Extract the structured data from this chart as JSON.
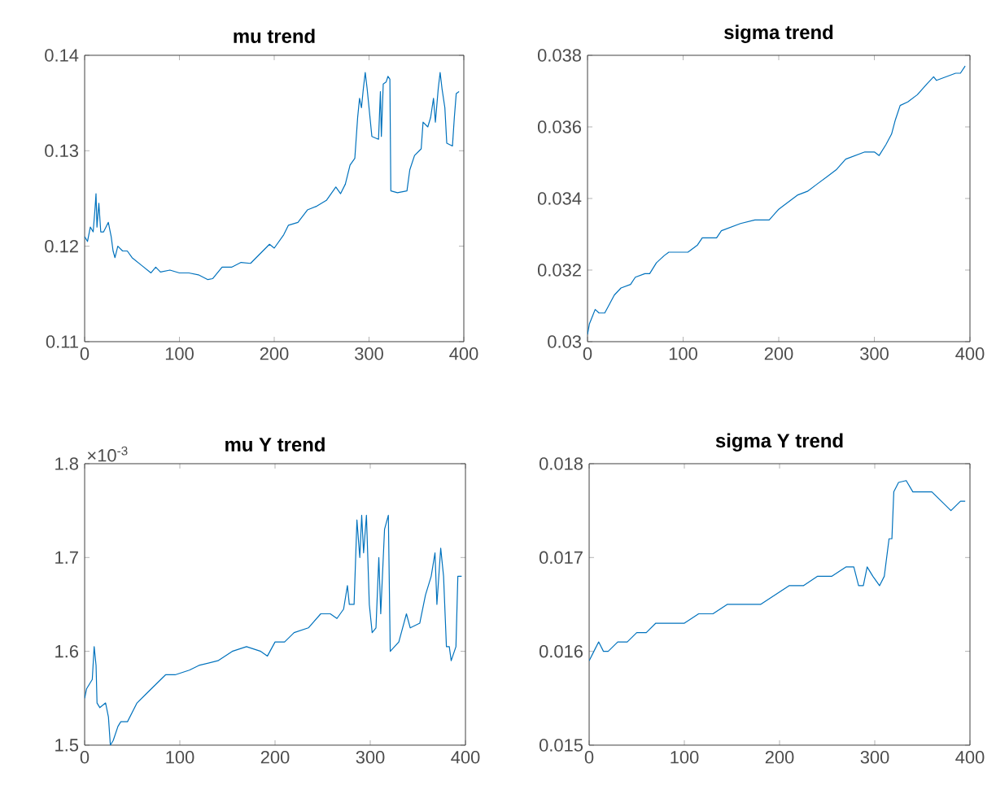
{
  "chart_data": [
    {
      "type": "line",
      "title": "mu trend",
      "color": "#0072bd",
      "xlim": [
        0,
        400
      ],
      "xticks": [
        0,
        100,
        200,
        300,
        400
      ],
      "ylim": [
        0.11,
        0.14
      ],
      "yticks": [
        0.11,
        0.12,
        0.13,
        0.14
      ],
      "grid": false,
      "x": [
        0,
        3,
        6,
        9,
        11,
        12,
        13,
        15,
        17,
        20,
        25,
        28,
        30,
        32,
        35,
        40,
        45,
        50,
        60,
        70,
        75,
        80,
        90,
        100,
        110,
        120,
        130,
        135,
        145,
        155,
        165,
        175,
        185,
        195,
        200,
        210,
        215,
        225,
        235,
        245,
        255,
        260,
        265,
        270,
        275,
        280,
        285,
        288,
        290,
        292,
        294,
        296,
        298,
        300,
        303,
        310,
        312,
        313,
        315,
        318,
        320,
        322,
        323,
        330,
        340,
        343,
        348,
        355,
        357,
        362,
        365,
        368,
        370,
        373,
        375,
        377,
        380,
        382,
        388,
        390,
        392,
        395
      ],
      "values": [
        0.121,
        0.1205,
        0.122,
        0.1215,
        0.124,
        0.1255,
        0.122,
        0.1245,
        0.1215,
        0.1215,
        0.1225,
        0.121,
        0.1195,
        0.1188,
        0.12,
        0.1195,
        0.1195,
        0.1188,
        0.118,
        0.1172,
        0.1178,
        0.1173,
        0.1175,
        0.1172,
        0.1172,
        0.117,
        0.1165,
        0.1166,
        0.1178,
        0.1178,
        0.1183,
        0.1182,
        0.1192,
        0.1202,
        0.1198,
        0.1212,
        0.1222,
        0.1225,
        0.1238,
        0.1242,
        0.1248,
        0.1255,
        0.1262,
        0.1255,
        0.1265,
        0.1285,
        0.1292,
        0.1335,
        0.1355,
        0.1345,
        0.1365,
        0.1382,
        0.1365,
        0.1345,
        0.1315,
        0.1312,
        0.1362,
        0.1315,
        0.137,
        0.1372,
        0.1378,
        0.1375,
        0.1258,
        0.1256,
        0.1258,
        0.128,
        0.1295,
        0.1302,
        0.133,
        0.1325,
        0.1335,
        0.1355,
        0.133,
        0.1365,
        0.1382,
        0.1365,
        0.1345,
        0.1308,
        0.1305,
        0.1335,
        0.136,
        0.1362
      ]
    },
    {
      "type": "line",
      "title": "sigma trend",
      "color": "#0072bd",
      "xlim": [
        0,
        400
      ],
      "xticks": [
        0,
        100,
        200,
        300,
        400
      ],
      "ylim": [
        0.03,
        0.038
      ],
      "yticks": [
        0.03,
        0.032,
        0.034,
        0.036,
        0.038
      ],
      "grid": false,
      "x": [
        0,
        2,
        5,
        8,
        12,
        18,
        22,
        28,
        35,
        45,
        50,
        60,
        65,
        72,
        80,
        85,
        95,
        105,
        115,
        120,
        135,
        140,
        150,
        160,
        175,
        190,
        200,
        210,
        220,
        230,
        240,
        250,
        260,
        270,
        280,
        290,
        300,
        305,
        312,
        318,
        322,
        327,
        335,
        345,
        355,
        362,
        365,
        375,
        385,
        390,
        395
      ],
      "values": [
        0.0302,
        0.0305,
        0.0307,
        0.0309,
        0.0308,
        0.0308,
        0.031,
        0.0313,
        0.0315,
        0.0316,
        0.0318,
        0.0319,
        0.0319,
        0.0322,
        0.0324,
        0.0325,
        0.0325,
        0.0325,
        0.0327,
        0.0329,
        0.0329,
        0.0331,
        0.0332,
        0.0333,
        0.0334,
        0.0334,
        0.0337,
        0.0339,
        0.0341,
        0.0342,
        0.0344,
        0.0346,
        0.0348,
        0.0351,
        0.0352,
        0.0353,
        0.0353,
        0.0352,
        0.0355,
        0.0358,
        0.0362,
        0.0366,
        0.0367,
        0.0369,
        0.0372,
        0.0374,
        0.0373,
        0.0374,
        0.0375,
        0.0375,
        0.0377
      ]
    },
    {
      "type": "line",
      "title": "mu Y trend",
      "color": "#0072bd",
      "xlim": [
        0,
        400
      ],
      "xticks": [
        0,
        100,
        200,
        300,
        400
      ],
      "ylim": [
        1.5,
        1.8
      ],
      "yticks": [
        1.5,
        1.6,
        1.7,
        1.8
      ],
      "grid": false,
      "annotations": [
        "×10$^{-3}$"
      ],
      "x": [
        0,
        2,
        5,
        8,
        10,
        12,
        13,
        16,
        22,
        25,
        27,
        30,
        35,
        38,
        45,
        55,
        65,
        75,
        80,
        85,
        95,
        110,
        120,
        140,
        155,
        170,
        185,
        192,
        200,
        210,
        220,
        235,
        248,
        258,
        265,
        272,
        276,
        278,
        283,
        286,
        289,
        291,
        293,
        296,
        299,
        302,
        306,
        309,
        311,
        315,
        319,
        321,
        330,
        338,
        342,
        352,
        358,
        364,
        368,
        370,
        374,
        377,
        380,
        383,
        385,
        390,
        392,
        396
      ],
      "values": [
        1.55,
        1.56,
        1.565,
        1.57,
        1.605,
        1.585,
        1.545,
        1.54,
        1.545,
        1.53,
        1.5,
        1.505,
        1.52,
        1.525,
        1.525,
        1.545,
        1.555,
        1.565,
        1.57,
        1.575,
        1.575,
        1.58,
        1.585,
        1.59,
        1.6,
        1.605,
        1.6,
        1.595,
        1.61,
        1.61,
        1.62,
        1.625,
        1.64,
        1.64,
        1.635,
        1.645,
        1.67,
        1.65,
        1.65,
        1.74,
        1.7,
        1.745,
        1.705,
        1.745,
        1.65,
        1.62,
        1.625,
        1.7,
        1.64,
        1.73,
        1.745,
        1.6,
        1.61,
        1.64,
        1.625,
        1.63,
        1.66,
        1.68,
        1.705,
        1.65,
        1.71,
        1.68,
        1.605,
        1.605,
        1.59,
        1.605,
        1.68,
        1.68
      ]
    },
    {
      "type": "line",
      "title": "sigma Y trend",
      "color": "#0072bd",
      "xlim": [
        0,
        400
      ],
      "xticks": [
        0,
        100,
        200,
        300,
        400
      ],
      "ylim": [
        0.015,
        0.018
      ],
      "yticks": [
        0.015,
        0.016,
        0.017,
        0.018
      ],
      "grid": false,
      "x": [
        0,
        5,
        10,
        15,
        20,
        30,
        40,
        50,
        60,
        70,
        80,
        90,
        100,
        115,
        130,
        145,
        160,
        180,
        195,
        210,
        225,
        240,
        255,
        270,
        278,
        283,
        288,
        292,
        298,
        305,
        310,
        315,
        318,
        320,
        325,
        333,
        340,
        350,
        360,
        370,
        380,
        390,
        395
      ],
      "values": [
        0.0159,
        0.016,
        0.0161,
        0.016,
        0.016,
        0.0161,
        0.0161,
        0.0162,
        0.0162,
        0.0163,
        0.0163,
        0.0163,
        0.0163,
        0.0164,
        0.0164,
        0.0165,
        0.0165,
        0.0165,
        0.0166,
        0.0167,
        0.0167,
        0.0168,
        0.0168,
        0.0169,
        0.0169,
        0.0167,
        0.0167,
        0.0169,
        0.0168,
        0.0167,
        0.0168,
        0.0172,
        0.0172,
        0.0177,
        0.0178,
        0.01782,
        0.0177,
        0.0177,
        0.0177,
        0.0176,
        0.0175,
        0.0176,
        0.0176
      ]
    }
  ]
}
